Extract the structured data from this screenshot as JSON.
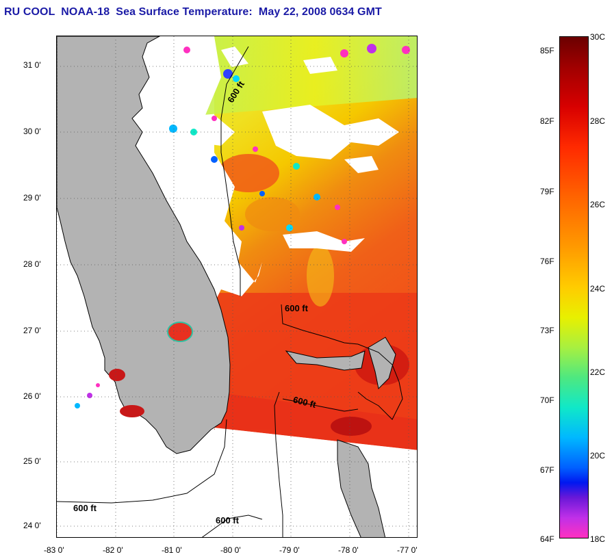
{
  "title": "RU COOL  NOAA-18  Sea Surface Temperature:  May 22, 2008 0634 GMT",
  "map": {
    "lat_ticks": [
      "31 0'",
      "30 0'",
      "29 0'",
      "28 0'",
      "27 0'",
      "26 0'",
      "25 0'",
      "24 0'"
    ],
    "lon_ticks": [
      "-83 0'",
      "-82 0'",
      "-81 0'",
      "-80 0'",
      "-79 0'",
      "-78 0'",
      "-77 0'"
    ],
    "isobath_labels": [
      "600 ft",
      "600 ft",
      "600 ft",
      "600 ft",
      "600 ft"
    ],
    "land_color": "#b3b3b3",
    "cloud_color": "#ffffff"
  },
  "colorbar": {
    "fahrenheit_labels": [
      "85F",
      "82F",
      "79F",
      "76F",
      "73F",
      "70F",
      "67F",
      "64F"
    ],
    "celsius_labels": [
      "30C",
      "28C",
      "26C",
      "24C",
      "22C",
      "20C",
      "18C"
    ]
  }
}
